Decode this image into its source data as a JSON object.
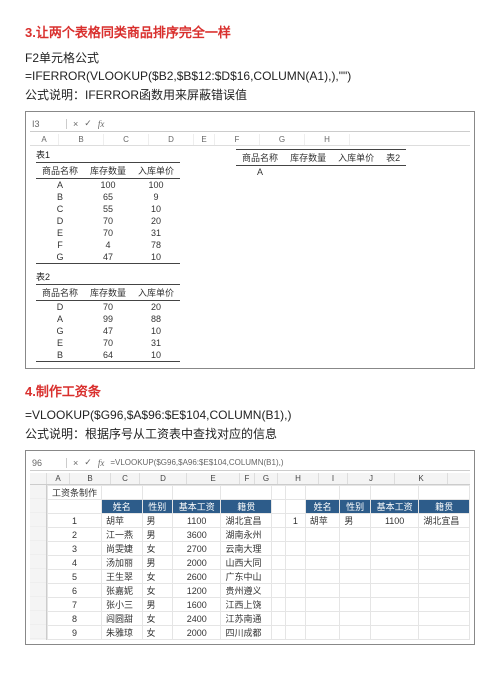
{
  "section3": {
    "heading": "3.让两个表格同类商品排序完全一样",
    "line1": "F2单元格公式",
    "line2": "=IFERROR(VLOOKUP($B2,$B$12:$D$16,COLUMN(A1),),\"\")",
    "line3": "公式说明：IFERROR函数用来屏蔽错误值",
    "ss": {
      "namebox": "I3",
      "fx_text": "",
      "col_letters": [
        "A",
        "B",
        "C",
        "D",
        "E",
        "F",
        "G",
        "H"
      ],
      "label1": "表1",
      "label2": "表2",
      "headers": [
        "商品名称",
        "库存数量",
        "入库单价"
      ],
      "headers2": [
        "商品名称",
        "库存数量",
        "入库单价",
        "表2"
      ],
      "t1": [
        [
          "A",
          "100",
          "100"
        ],
        [
          "B",
          "65",
          "9"
        ],
        [
          "C",
          "55",
          "10"
        ],
        [
          "D",
          "70",
          "20"
        ],
        [
          "E",
          "70",
          "31"
        ],
        [
          "F",
          "4",
          "78"
        ],
        [
          "G",
          "47",
          "10"
        ]
      ],
      "t1_right_val": "A",
      "t2": [
        [
          "D",
          "70",
          "20"
        ],
        [
          "A",
          "99",
          "88"
        ],
        [
          "G",
          "47",
          "10"
        ],
        [
          "E",
          "70",
          "31"
        ],
        [
          "B",
          "64",
          "10"
        ]
      ]
    }
  },
  "section4": {
    "heading": "4.制作工资条",
    "line1": "=VLOOKUP($G96,$A$96:$E$104,COLUMN(B1),)",
    "line2": "公式说明：根据序号从工资表中查找对应的信息",
    "ss": {
      "namebox": "96",
      "fx_text": "=VLOOKUP($G96,$A96:$E$104,COLUMN(B1),)",
      "col_letters": [
        "A",
        "B",
        "C",
        "D",
        "E",
        "F",
        "G",
        "H",
        "I",
        "J",
        "K"
      ],
      "title": "工资条制作",
      "headers_main": [
        "姓名",
        "性别",
        "基本工资",
        "籍贯"
      ],
      "rows": [
        [
          "1",
          "胡苹",
          "男",
          "1100",
          "湖北宜昌"
        ],
        [
          "2",
          "江一燕",
          "男",
          "3600",
          "湖南永州"
        ],
        [
          "3",
          "尚雯婕",
          "女",
          "2700",
          "云南大理"
        ],
        [
          "4",
          "汤加丽",
          "男",
          "2000",
          "山西大同"
        ],
        [
          "5",
          "王生翠",
          "女",
          "2600",
          "广东中山"
        ],
        [
          "6",
          "张嘉妮",
          "女",
          "1200",
          "贵州遵义"
        ],
        [
          "7",
          "张小三",
          "男",
          "1600",
          "江西上饶"
        ],
        [
          "8",
          "闾圆甜",
          "女",
          "2400",
          "江苏南通"
        ],
        [
          "9",
          "朱雅琼",
          "女",
          "2000",
          "四川成都"
        ]
      ],
      "side_row": [
        "1",
        "胡苹",
        "男",
        "1100",
        "湖北宜昌"
      ]
    }
  }
}
